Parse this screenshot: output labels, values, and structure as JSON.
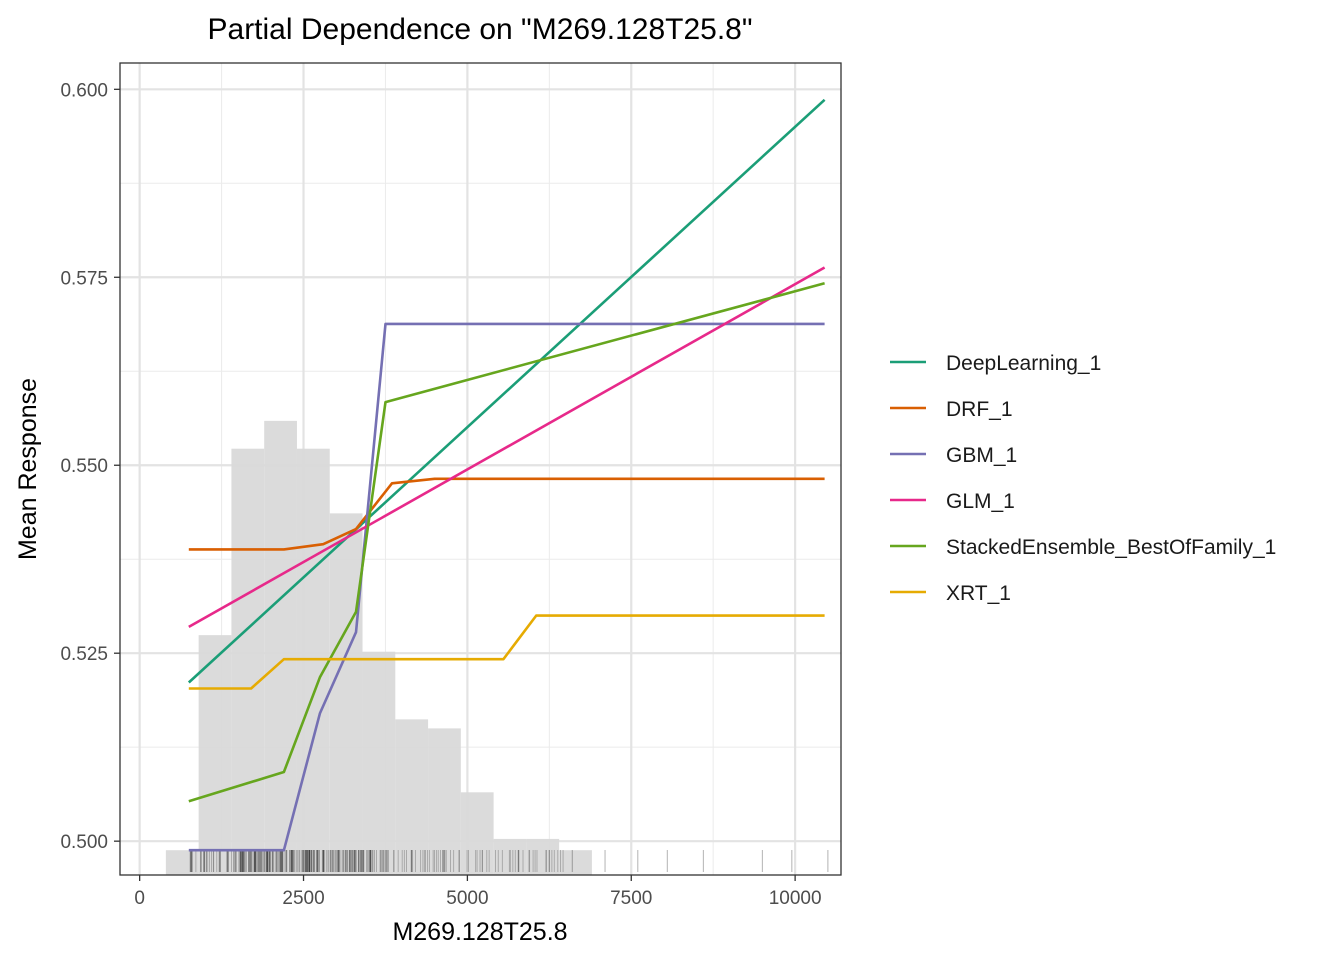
{
  "chart_data": {
    "type": "line",
    "title": "Partial Dependence on \"M269.128T25.8\"",
    "xlabel": "M269.128T25.8",
    "ylabel": "Mean Response",
    "xlim": [
      -300,
      10700
    ],
    "ylim": [
      0.4955,
      0.6035
    ],
    "x_ticks": [
      0,
      2500,
      5000,
      7500,
      10000
    ],
    "x_tick_labels": [
      "0",
      "2500",
      "5000",
      "7500",
      "10000"
    ],
    "y_ticks": [
      0.5,
      0.525,
      0.55,
      0.575,
      0.6
    ],
    "y_tick_labels": [
      "0.500",
      "0.525",
      "0.550",
      "0.575",
      "0.600"
    ],
    "grid": true,
    "legend_position": "right",
    "series": [
      {
        "name": "DeepLearning_1",
        "color": "#1b9e77",
        "x": [
          750,
          10450
        ],
        "y": [
          0.5211,
          0.5986
        ]
      },
      {
        "name": "DRF_1",
        "color": "#d95f02",
        "x": [
          750,
          2200,
          2800,
          3300,
          3850,
          4500,
          10450
        ],
        "y": [
          0.5388,
          0.5388,
          0.5395,
          0.5415,
          0.5476,
          0.5482,
          0.5482
        ]
      },
      {
        "name": "GBM_1",
        "color": "#7570b3",
        "x": [
          750,
          2200,
          2750,
          3300,
          3750,
          10450
        ],
        "y": [
          0.4988,
          0.4988,
          0.517,
          0.5278,
          0.5688,
          0.5688
        ]
      },
      {
        "name": "GLM_1",
        "color": "#e7298a",
        "x": [
          750,
          10450
        ],
        "y": [
          0.5285,
          0.5763
        ]
      },
      {
        "name": "StackedEnsemble_BestOfFamily_1",
        "color": "#66a61e",
        "x": [
          750,
          2200,
          2750,
          3300,
          3750,
          10450
        ],
        "y": [
          0.5053,
          0.5092,
          0.5218,
          0.5305,
          0.5584,
          0.5742
        ]
      },
      {
        "name": "XRT_1",
        "color": "#e6ab02",
        "x": [
          750,
          1700,
          2200,
          5550,
          6050,
          10450
        ],
        "y": [
          0.5203,
          0.5203,
          0.5242,
          0.5242,
          0.53,
          0.53
        ]
      }
    ],
    "histogram": {
      "color": "#d9d9d9",
      "bins": [
        {
          "x0": 400,
          "x1": 900,
          "y": 0.4988
        },
        {
          "x0": 900,
          "x1": 1400,
          "y": 0.5274
        },
        {
          "x0": 1400,
          "x1": 1900,
          "y": 0.5522
        },
        {
          "x0": 1900,
          "x1": 2400,
          "y": 0.5559
        },
        {
          "x0": 2400,
          "x1": 2900,
          "y": 0.5522
        },
        {
          "x0": 2900,
          "x1": 3400,
          "y": 0.5436
        },
        {
          "x0": 3400,
          "x1": 3900,
          "y": 0.5252
        },
        {
          "x0": 3900,
          "x1": 4400,
          "y": 0.5162
        },
        {
          "x0": 4400,
          "x1": 4900,
          "y": 0.515
        },
        {
          "x0": 4900,
          "x1": 5400,
          "y": 0.5065
        },
        {
          "x0": 5400,
          "x1": 5900,
          "y": 0.5003
        },
        {
          "x0": 5900,
          "x1": 6400,
          "y": 0.5003
        },
        {
          "x0": 6400,
          "x1": 6900,
          "y": 0.4988
        },
        {
          "x0": 6900,
          "x1": 7400,
          "y": 0.4955
        },
        {
          "x0": 7400,
          "x1": 7900,
          "y": 0.4955
        },
        {
          "x0": 7900,
          "x1": 8400,
          "y": 0.4955
        },
        {
          "x0": 8400,
          "x1": 8900,
          "y": 0.4955
        },
        {
          "x0": 8900,
          "x1": 9400,
          "y": 0.4955
        },
        {
          "x0": 9400,
          "x1": 9900,
          "y": 0.4955
        },
        {
          "x0": 9900,
          "x1": 10400,
          "y": 0.4955
        },
        {
          "x0": 10400,
          "x1": 10900,
          "y": 0.4955
        }
      ]
    },
    "rug": {
      "color": "#000000",
      "dense_range": [
        750,
        6500
      ],
      "sparse_x": [
        6600,
        7100,
        7600,
        8050,
        8600,
        9500,
        9950,
        10500
      ]
    }
  }
}
